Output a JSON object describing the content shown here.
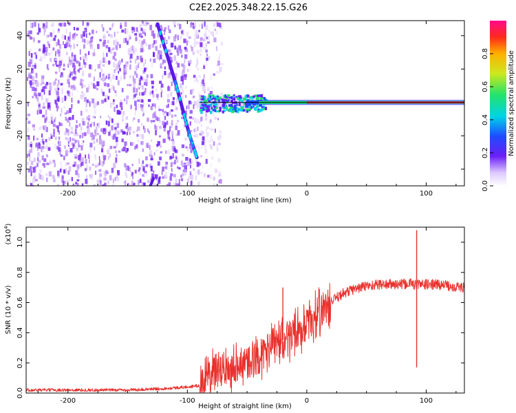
{
  "title": "C2E2.2025.348.22.15.G26",
  "chart_data": [
    {
      "type": "heatmap",
      "xlabel": "Height of straight line (km)",
      "ylabel": "Frequency (Hz)",
      "xlim": [
        -235,
        132
      ],
      "ylim": [
        -50,
        49
      ],
      "x_ticks": [
        "-200",
        "-100",
        "0",
        "100"
      ],
      "y_ticks": [
        "40",
        "20",
        "0",
        "-20",
        "-40"
      ],
      "colorbar": {
        "label": "Normalized spectral amplitude",
        "range": [
          0,
          1
        ],
        "ticks": [
          "0.0",
          "0.2",
          "0.4",
          "0.6",
          "0.8"
        ]
      },
      "features": [
        {
          "name": "diffuse noise",
          "x_range": [
            -235,
            -90
          ],
          "freq_range": [
            -50,
            49
          ]
        },
        {
          "name": "diagonal trace",
          "points": [
            [
              -125,
              47
            ],
            [
              -110,
              12
            ],
            [
              -98,
              -20
            ],
            [
              -92,
              -33
            ],
            [
              -130,
              -48
            ]
          ]
        },
        {
          "name": "carrier line",
          "x_range": [
            -90,
            132
          ],
          "freq_hz": 0
        }
      ]
    },
    {
      "type": "line",
      "xlabel": "Height of straight line (km)",
      "ylabel": "SNR (10 * v/v)",
      "y_scale_label": "(x10^4)",
      "xlim": [
        -235,
        132
      ],
      "ylim": [
        0,
        1.1
      ],
      "x_ticks": [
        "-200",
        "-100",
        "0",
        "100"
      ],
      "y_ticks": [
        "0.0",
        "0.2",
        "0.4",
        "0.6",
        "0.8",
        "1.0"
      ],
      "series": [
        {
          "name": "SNR",
          "color": "#e8312d",
          "x": [
            -235,
            -200,
            -150,
            -120,
            -100,
            -90,
            -85,
            -80,
            -70,
            -60,
            -50,
            -40,
            -30,
            -20,
            -10,
            0,
            10,
            20,
            30,
            40,
            50,
            60,
            70,
            80,
            88,
            90,
            93,
            95,
            100,
            110,
            120,
            132
          ],
          "y": [
            0.02,
            0.02,
            0.02,
            0.03,
            0.04,
            0.05,
            0.09,
            0.12,
            0.15,
            0.18,
            0.2,
            0.24,
            0.3,
            0.35,
            0.4,
            0.45,
            0.53,
            0.6,
            0.66,
            0.69,
            0.71,
            0.72,
            0.72,
            0.72,
            0.73,
            0.72,
            0.72,
            0.72,
            0.72,
            0.72,
            0.71,
            0.7
          ]
        }
      ],
      "annotations": [
        {
          "x": -20,
          "y": 0.7,
          "text": "spike"
        },
        {
          "x": 92,
          "y": 1.08,
          "text": "spike"
        },
        {
          "x": 92,
          "y": 0.17,
          "text": "dip"
        }
      ]
    }
  ],
  "colors": {
    "snr_line": "#e8312d",
    "noise": "#7a2cf0",
    "carrier": "#e8312d"
  }
}
